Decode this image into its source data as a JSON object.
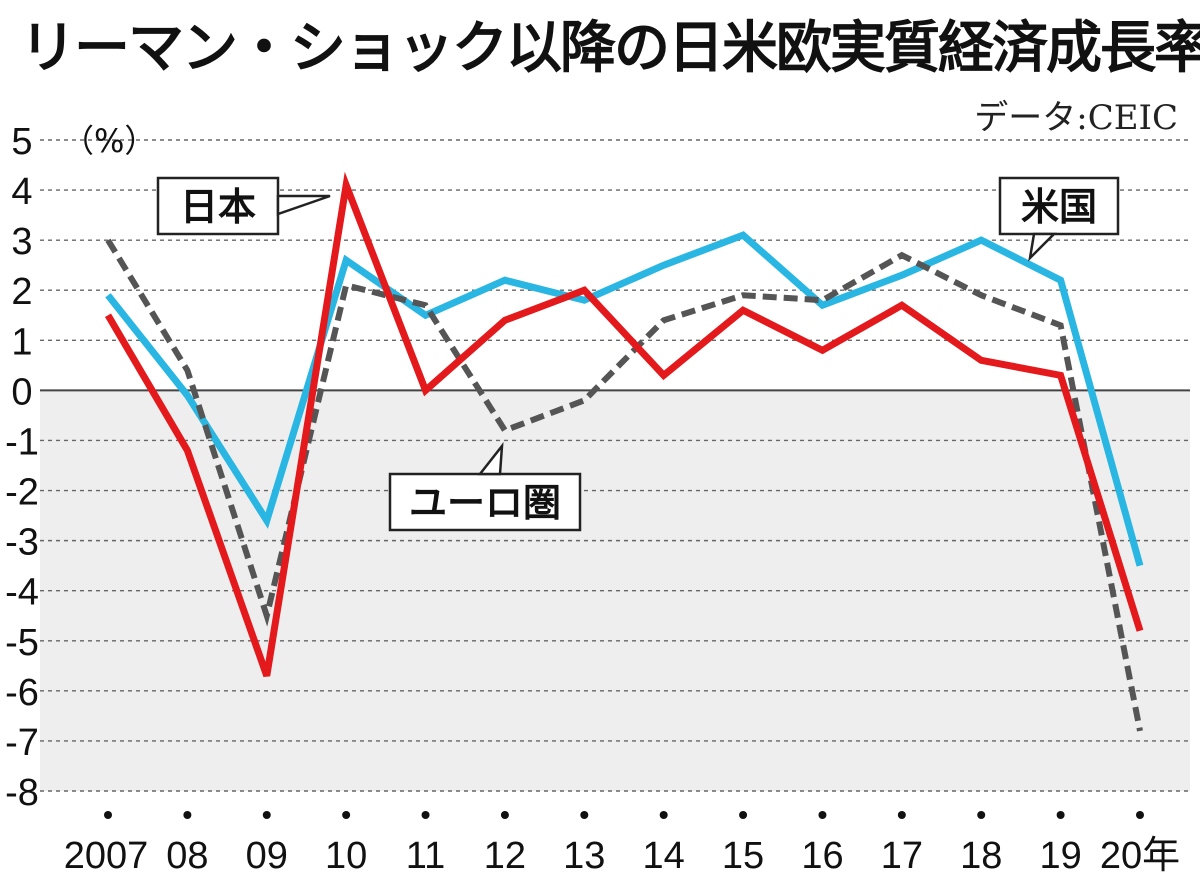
{
  "title": "リーマン・ショック以降の日米欧実質経済成長率",
  "source": "データ:CEIC",
  "chart_data": {
    "type": "line",
    "title": "リーマン・ショック以降の日米欧実質経済成長率",
    "y_unit_label": "（%）",
    "ylim": [
      -8,
      5
    ],
    "y_ticks": [
      "5",
      "4",
      "3",
      "2",
      "1",
      "0",
      "-1",
      "-2",
      "-3",
      "-4",
      "-5",
      "-6",
      "-7",
      "-8"
    ],
    "x_tick_labels": [
      "2007",
      "08",
      "09",
      "10",
      "11",
      "12",
      "13",
      "14",
      "15",
      "16",
      "17",
      "18",
      "19",
      "20年"
    ],
    "x": [
      2007,
      2008,
      2009,
      2010,
      2011,
      2012,
      2013,
      2014,
      2015,
      2016,
      2017,
      2018,
      2019,
      2020
    ],
    "grid": true,
    "negative_region_shaded": true,
    "series": [
      {
        "name": "米国",
        "color": "#29b6e3",
        "style": "solid",
        "values": [
          1.9,
          -0.1,
          -2.6,
          2.6,
          1.5,
          2.2,
          1.8,
          2.5,
          3.1,
          1.7,
          2.3,
          3.0,
          2.2,
          -3.5
        ]
      },
      {
        "name": "ユーロ圏",
        "color": "#555555",
        "style": "dashed",
        "values": [
          3.0,
          0.4,
          -4.5,
          2.1,
          1.7,
          -0.8,
          -0.2,
          1.4,
          1.9,
          1.8,
          2.7,
          1.9,
          1.3,
          -6.8
        ]
      },
      {
        "name": "日本",
        "color": "#e3191c",
        "style": "solid",
        "values": [
          1.5,
          -1.2,
          -5.7,
          4.1,
          0.0,
          1.4,
          2.0,
          0.3,
          1.6,
          0.8,
          1.7,
          0.6,
          0.3,
          -4.8
        ]
      }
    ]
  }
}
